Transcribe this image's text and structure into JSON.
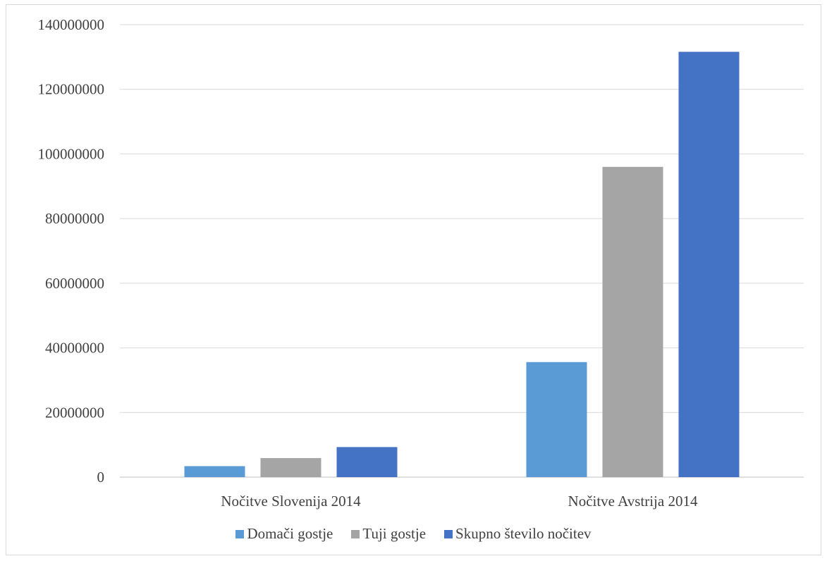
{
  "chart_data": {
    "type": "bar",
    "categories": [
      "Nočitve Slovenija 2014",
      "Nočitve Avstrija 2014"
    ],
    "series": [
      {
        "name": "Domači gostje",
        "values": [
          3400000,
          35600000
        ],
        "color": "#5b9bd5"
      },
      {
        "name": "Tuji gostje",
        "values": [
          5900000,
          96000000
        ],
        "color": "#a5a5a5"
      },
      {
        "name": "Skupno število nočitev",
        "values": [
          9300000,
          131600000
        ],
        "color": "#4472c4"
      }
    ],
    "title": "",
    "xlabel": "",
    "ylabel": "",
    "ylim": [
      0,
      140000000
    ],
    "yticks": [
      "0",
      "20000000",
      "40000000",
      "60000000",
      "80000000",
      "100000000",
      "120000000",
      "140000000"
    ],
    "grid": true,
    "legend_position": "bottom"
  }
}
